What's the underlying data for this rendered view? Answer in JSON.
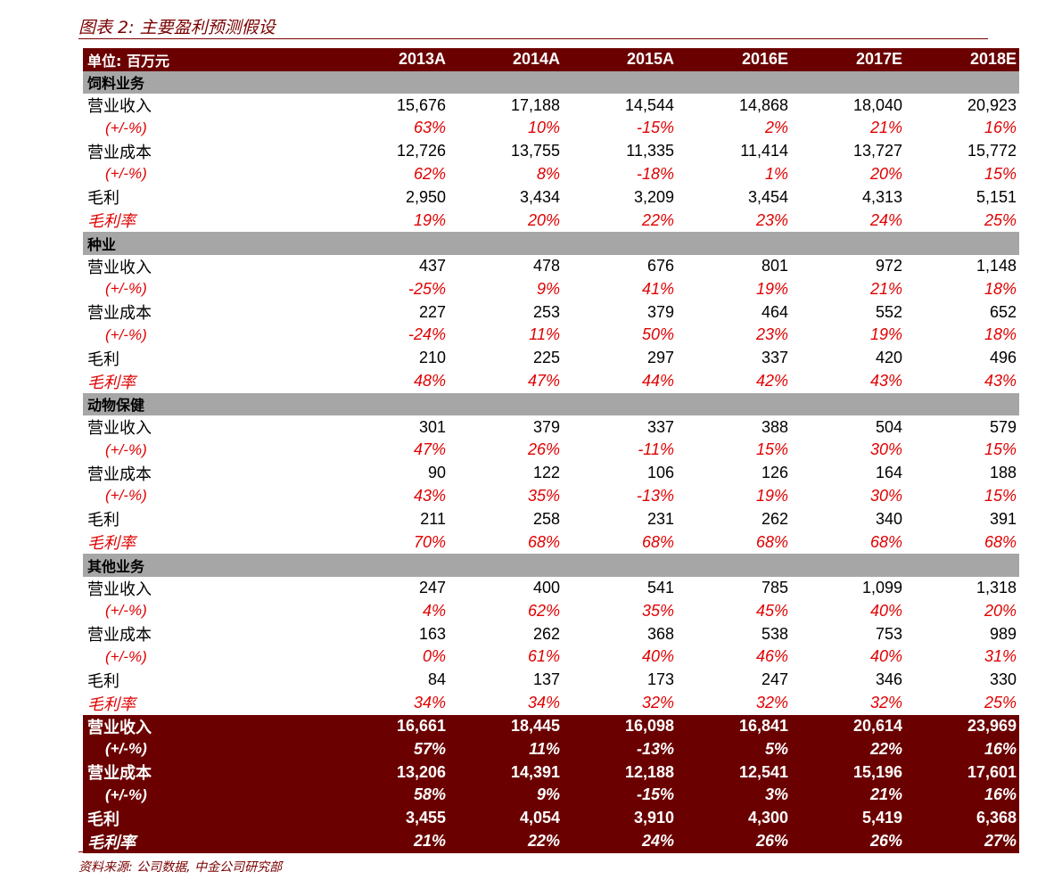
{
  "title": "图表 2:  主要盈利预测假设",
  "source": "资料来源: 公司数据, 中金公司研究部",
  "header": {
    "unit_label": "单位:  百万元",
    "years": [
      "2013A",
      "2014A",
      "2015A",
      "2016E",
      "2017E",
      "2018E"
    ]
  },
  "sections": [
    {
      "name": "饲料业务",
      "rows": [
        {
          "label": "营业收入",
          "kind": "value",
          "values": [
            "15,676",
            "17,188",
            "14,544",
            "14,868",
            "18,040",
            "20,923"
          ]
        },
        {
          "label": "(+/-%)",
          "kind": "pct",
          "values": [
            "63%",
            "10%",
            "-15%",
            "2%",
            "21%",
            "16%"
          ]
        },
        {
          "label": "营业成本",
          "kind": "value",
          "values": [
            "12,726",
            "13,755",
            "11,335",
            "11,414",
            "13,727",
            "15,772"
          ]
        },
        {
          "label": "(+/-%)",
          "kind": "pct",
          "values": [
            "62%",
            "8%",
            "-18%",
            "1%",
            "20%",
            "15%"
          ]
        },
        {
          "label": "毛利",
          "kind": "value",
          "values": [
            "2,950",
            "3,434",
            "3,209",
            "3,454",
            "4,313",
            "5,151"
          ]
        },
        {
          "label": "毛利率",
          "kind": "margin",
          "values": [
            "19%",
            "20%",
            "22%",
            "23%",
            "24%",
            "25%"
          ]
        }
      ]
    },
    {
      "name": "种业",
      "rows": [
        {
          "label": "营业收入",
          "kind": "value",
          "values": [
            "437",
            "478",
            "676",
            "801",
            "972",
            "1,148"
          ]
        },
        {
          "label": "(+/-%)",
          "kind": "pct",
          "values": [
            "-25%",
            "9%",
            "41%",
            "19%",
            "21%",
            "18%"
          ]
        },
        {
          "label": "营业成本",
          "kind": "value",
          "values": [
            "227",
            "253",
            "379",
            "464",
            "552",
            "652"
          ]
        },
        {
          "label": "(+/-%)",
          "kind": "pct",
          "values": [
            "-24%",
            "11%",
            "50%",
            "23%",
            "19%",
            "18%"
          ]
        },
        {
          "label": "毛利",
          "kind": "value",
          "values": [
            "210",
            "225",
            "297",
            "337",
            "420",
            "496"
          ]
        },
        {
          "label": "毛利率",
          "kind": "margin",
          "values": [
            "48%",
            "47%",
            "44%",
            "42%",
            "43%",
            "43%"
          ]
        }
      ]
    },
    {
      "name": "动物保健",
      "rows": [
        {
          "label": "营业收入",
          "kind": "value",
          "values": [
            "301",
            "379",
            "337",
            "388",
            "504",
            "579"
          ]
        },
        {
          "label": "(+/-%)",
          "kind": "pct",
          "values": [
            "47%",
            "26%",
            "-11%",
            "15%",
            "30%",
            "15%"
          ]
        },
        {
          "label": "营业成本",
          "kind": "value",
          "values": [
            "90",
            "122",
            "106",
            "126",
            "164",
            "188"
          ]
        },
        {
          "label": "(+/-%)",
          "kind": "pct",
          "values": [
            "43%",
            "35%",
            "-13%",
            "19%",
            "30%",
            "15%"
          ]
        },
        {
          "label": "毛利",
          "kind": "value",
          "values": [
            "211",
            "258",
            "231",
            "262",
            "340",
            "391"
          ]
        },
        {
          "label": "毛利率",
          "kind": "margin",
          "values": [
            "70%",
            "68%",
            "68%",
            "68%",
            "68%",
            "68%"
          ]
        }
      ]
    },
    {
      "name": "其他业务",
      "rows": [
        {
          "label": "营业收入",
          "kind": "value",
          "values": [
            "247",
            "400",
            "541",
            "785",
            "1,099",
            "1,318"
          ]
        },
        {
          "label": "(+/-%)",
          "kind": "pct",
          "values": [
            "4%",
            "62%",
            "35%",
            "45%",
            "40%",
            "20%"
          ]
        },
        {
          "label": "营业成本",
          "kind": "value",
          "values": [
            "163",
            "262",
            "368",
            "538",
            "753",
            "989"
          ]
        },
        {
          "label": "(+/-%)",
          "kind": "pct",
          "values": [
            "0%",
            "61%",
            "40%",
            "46%",
            "40%",
            "31%"
          ]
        },
        {
          "label": "毛利",
          "kind": "value",
          "values": [
            "84",
            "137",
            "173",
            "247",
            "346",
            "330"
          ]
        },
        {
          "label": "毛利率",
          "kind": "margin",
          "values": [
            "34%",
            "34%",
            "32%",
            "32%",
            "32%",
            "25%"
          ]
        }
      ]
    }
  ],
  "totals": [
    {
      "label": "营业收入",
      "kind": "value",
      "values": [
        "16,661",
        "18,445",
        "16,098",
        "16,841",
        "20,614",
        "23,969"
      ]
    },
    {
      "label": "(+/-%)",
      "kind": "pct",
      "values": [
        "57%",
        "11%",
        "-13%",
        "5%",
        "22%",
        "16%"
      ]
    },
    {
      "label": "营业成本",
      "kind": "value",
      "values": [
        "13,206",
        "14,391",
        "12,188",
        "12,541",
        "15,196",
        "17,601"
      ]
    },
    {
      "label": "(+/-%)",
      "kind": "pct",
      "values": [
        "58%",
        "9%",
        "-15%",
        "3%",
        "21%",
        "16%"
      ]
    },
    {
      "label": "毛利",
      "kind": "value",
      "values": [
        "3,455",
        "4,054",
        "3,910",
        "4,300",
        "5,419",
        "6,368"
      ]
    },
    {
      "label": "毛利率",
      "kind": "margin",
      "values": [
        "21%",
        "22%",
        "24%",
        "26%",
        "26%",
        "27%"
      ]
    }
  ],
  "colors": {
    "header_bg": "#6b0000",
    "section_bg": "#a6a6a6",
    "pct_text": "#e00000",
    "title_text": "#7a0000"
  }
}
